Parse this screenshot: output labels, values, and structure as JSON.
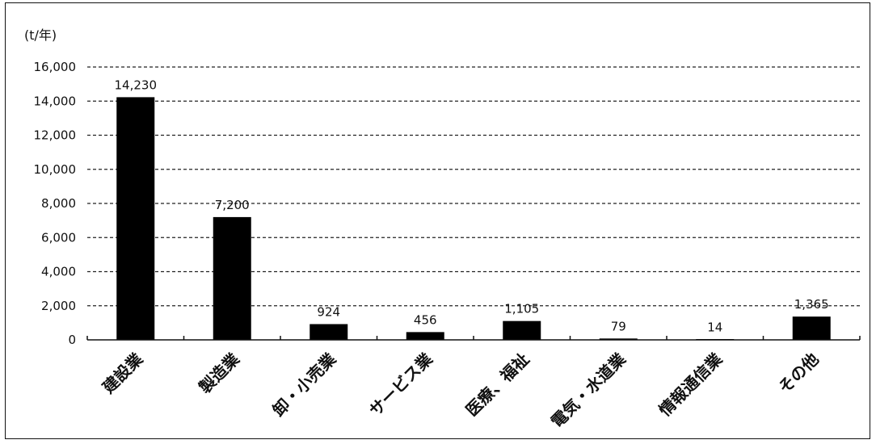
{
  "chart_data": {
    "type": "bar",
    "unit_label": "(t/年)",
    "categories": [
      "建設業",
      "製造業",
      "卸・小売業",
      "サービス業",
      "医療、福祉",
      "電気・水道業",
      "情報通信業",
      "その他"
    ],
    "values": [
      14230,
      7200,
      924,
      456,
      1105,
      79,
      14,
      1365
    ],
    "value_labels": [
      "14,230",
      "7,200",
      "924",
      "456",
      "1,105",
      "79",
      "14",
      "1,365"
    ],
    "yticks": [
      "0",
      "2,000",
      "4,000",
      "6,000",
      "8,000",
      "10,000",
      "12,000",
      "14,000",
      "16,000"
    ],
    "ylim": [
      0,
      16000
    ],
    "grid": "dashed horizontal",
    "bar_color": "#000000"
  }
}
